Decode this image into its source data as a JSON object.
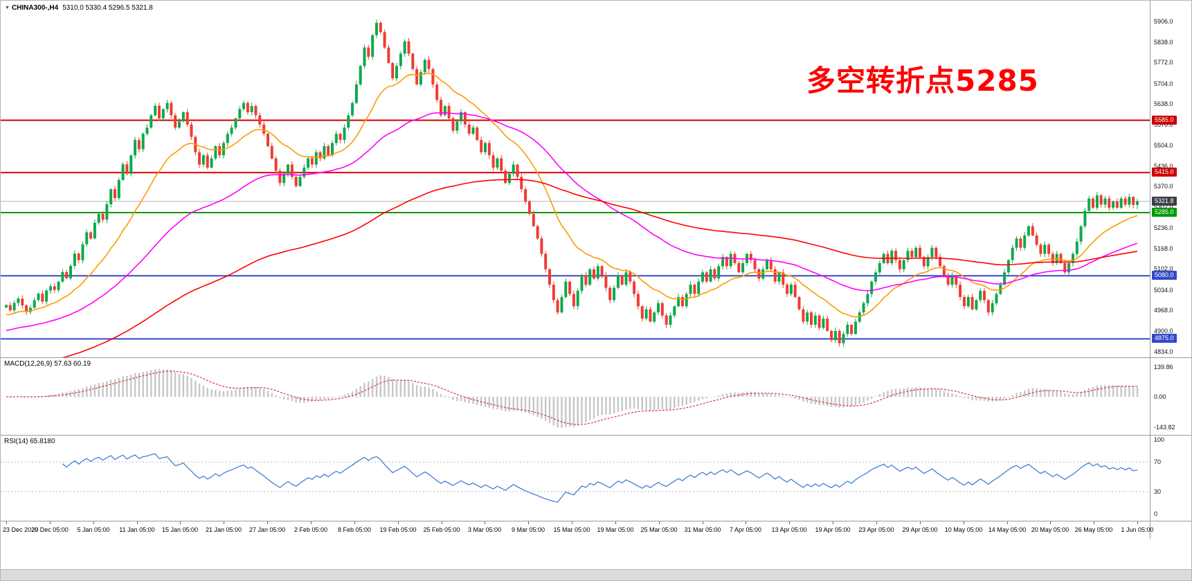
{
  "window": {
    "symbol_label": "CHINA300-,H4",
    "ohlc_label": "5310.0 5330.4 5296.5 5321.8"
  },
  "annotation": {
    "text": "多空转折点5285",
    "color": "#ff0000"
  },
  "macd_panel": {
    "label": "MACD(12,26,9) 57.63 60.19"
  },
  "rsi_panel": {
    "label": "RSI(14) 65.8180"
  },
  "chart_data": {
    "type": "candlestick",
    "symbol": "CHINA300-",
    "timeframe": "H4",
    "title": "CHINA300-,H4 5310.0 5330.4 5296.5 5321.8",
    "ylim": [
      4822,
      5955
    ],
    "y_tick_prices": [
      5906,
      5838,
      5772,
      5704,
      5638,
      5570,
      5504,
      5436,
      5370,
      5302,
      5236,
      5168,
      5102,
      5034,
      4968,
      4900,
      4834
    ],
    "x_tick_labels": [
      "23 Dec 2020",
      "29 Dec 05:00",
      "5 Jan 05:00",
      "11 Jan 05:00",
      "15 Jan 05:00",
      "21 Jan 05:00",
      "27 Jan 05:00",
      "2 Feb 05:00",
      "8 Feb 05:00",
      "19 Feb 05:00",
      "25 Feb 05:00",
      "3 Mar 05:00",
      "9 Mar 05:00",
      "15 Mar 05:00",
      "19 Mar 05:00",
      "25 Mar 05:00",
      "31 Mar 05:00",
      "7 Apr 05:00",
      "13 Apr 05:00",
      "19 Apr 05:00",
      "23 Apr 05:00",
      "29 Apr 05:00",
      "10 May 05:00",
      "14 May 05:00",
      "20 May 05:00",
      "26 May 05:00",
      "1 Jun 05:00"
    ],
    "current_bar": {
      "open": 5310.0,
      "high": 5330.4,
      "low": 5296.5,
      "close": 5321.8
    },
    "closes": [
      4985,
      4968,
      4992,
      5006,
      4984,
      4962,
      4976,
      5001,
      5022,
      4996,
      5032,
      5046,
      5034,
      5061,
      5092,
      5072,
      5112,
      5152,
      5131,
      5182,
      5221,
      5201,
      5252,
      5281,
      5262,
      5312,
      5361,
      5332,
      5391,
      5442,
      5411,
      5471,
      5521,
      5491,
      5541,
      5561,
      5601,
      5632,
      5591,
      5621,
      5641,
      5601,
      5561,
      5581,
      5611,
      5571,
      5531,
      5481,
      5441,
      5471,
      5431,
      5461,
      5501,
      5471,
      5511,
      5541,
      5561,
      5591,
      5621,
      5641,
      5611,
      5631,
      5601,
      5571,
      5541,
      5501,
      5461,
      5421,
      5381,
      5411,
      5441,
      5401,
      5371,
      5401,
      5431,
      5461,
      5441,
      5481,
      5461,
      5501,
      5471,
      5511,
      5541,
      5521,
      5561,
      5601,
      5641,
      5701,
      5761,
      5821,
      5791,
      5861,
      5901,
      5871,
      5821,
      5771,
      5721,
      5761,
      5801,
      5841,
      5801,
      5751,
      5701,
      5741,
      5781,
      5751,
      5701,
      5651,
      5601,
      5631,
      5591,
      5551,
      5581,
      5611,
      5571,
      5541,
      5561,
      5521,
      5481,
      5511,
      5471,
      5431,
      5461,
      5421,
      5381,
      5411,
      5441,
      5401,
      5361,
      5321,
      5281,
      5241,
      5201,
      5151,
      5101,
      5051,
      5001,
      4961,
      5011,
      5061,
      5021,
      4981,
      5031,
      5081,
      5051,
      5101,
      5071,
      5111,
      5081,
      5041,
      5001,
      5041,
      5081,
      5051,
      5091,
      5061,
      5021,
      4981,
      4941,
      4971,
      4931,
      4961,
      4991,
      4951,
      4921,
      4951,
      4981,
      5011,
      4981,
      5021,
      5051,
      5021,
      5061,
      5091,
      5061,
      5101,
      5071,
      5111,
      5141,
      5111,
      5151,
      5121,
      5091,
      5121,
      5151,
      5131,
      5101,
      5071,
      5101,
      5131,
      5101,
      5061,
      5091,
      5051,
      5021,
      5051,
      5011,
      4971,
      4931,
      4961,
      4921,
      4951,
      4911,
      4941,
      4901,
      4871,
      4901,
      4861,
      4891,
      4921,
      4891,
      4931,
      4961,
      4991,
      5021,
      5061,
      5091,
      5121,
      5151,
      5121,
      5161,
      5131,
      5101,
      5131,
      5161,
      5141,
      5171,
      5141,
      5111,
      5141,
      5171,
      5141,
      5111,
      5081,
      5051,
      5081,
      5051,
      5011,
      4981,
      5011,
      4971,
      5001,
      5031,
      5001,
      4961,
      4991,
      5021,
      5051,
      5091,
      5131,
      5171,
      5201,
      5171,
      5211,
      5241,
      5211,
      5181,
      5151,
      5181,
      5151,
      5121,
      5151,
      5121,
      5091,
      5121,
      5151,
      5191,
      5241,
      5291,
      5331,
      5301,
      5341,
      5311,
      5331,
      5301,
      5321,
      5301,
      5331,
      5311,
      5336,
      5310,
      5321.8
    ],
    "horizontal_lines": [
      {
        "price": 5585.0,
        "color": "#d40000",
        "width": 2
      },
      {
        "price": 5415.0,
        "color": "#d40000",
        "width": 2
      },
      {
        "price": 5321.8,
        "color": "#b4b4b4",
        "width": 1
      },
      {
        "price": 5285.0,
        "color": "#009a00",
        "width": 2
      },
      {
        "price": 5080.0,
        "color": "#3349cc",
        "width": 2
      },
      {
        "price": 4875.0,
        "color": "#3349cc",
        "width": 2
      }
    ],
    "price_tags": [
      {
        "price": 5585.0,
        "bg": "#cc0000"
      },
      {
        "price": 5415.0,
        "bg": "#cc0000"
      },
      {
        "price": 5321.8,
        "bg": "#3d3d46"
      },
      {
        "price": 5285.0,
        "bg": "#009900"
      },
      {
        "price": 5080.0,
        "bg": "#3349cc"
      },
      {
        "price": 4875.0,
        "bg": "#3349cc"
      }
    ],
    "moving_averages": [
      {
        "period": 20,
        "seed": 4950,
        "color": "#ff9900"
      },
      {
        "period": 60,
        "seed": 4900,
        "color": "#ff00ff"
      },
      {
        "period": 150,
        "seed": 4770,
        "color": "#ff0000"
      }
    ],
    "macd": {
      "fast": 12,
      "slow": 26,
      "signal": 9,
      "current_macd": 57.63,
      "current_signal": 60.19,
      "hist_color": "#c6c6c6",
      "signal_color": "#e03232"
    },
    "macd_axis_values": [
      139.86,
      0,
      -143.82
    ],
    "rsi": {
      "period": 14,
      "current": 65.818,
      "color": "#3f7fd4"
    },
    "rsi_axis_values": [
      100,
      70,
      30,
      0
    ],
    "rsi_levels": [
      70,
      30
    ],
    "candle_up_color": "#0fa84e",
    "candle_down_color": "#ef3c32"
  }
}
